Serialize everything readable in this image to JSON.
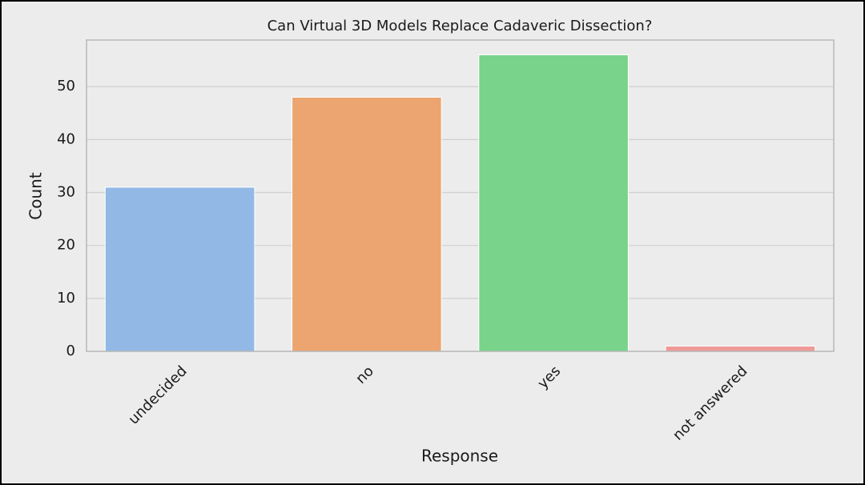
{
  "chart_data": {
    "type": "bar",
    "title": "Can Virtual 3D Models Replace Cadaveric Dissection?",
    "x_label": "Response",
    "y_label": "Count",
    "categories": [
      "undecided",
      "no",
      "yes",
      "not answered"
    ],
    "values": [
      31,
      48,
      56,
      1
    ],
    "colors": [
      "#92b9e6",
      "#eca470",
      "#79d38a",
      "#ef9a98"
    ],
    "ylim": [
      0,
      58.8
    ],
    "yticks": [
      0,
      10,
      20,
      30,
      40,
      50
    ],
    "grid": true
  }
}
